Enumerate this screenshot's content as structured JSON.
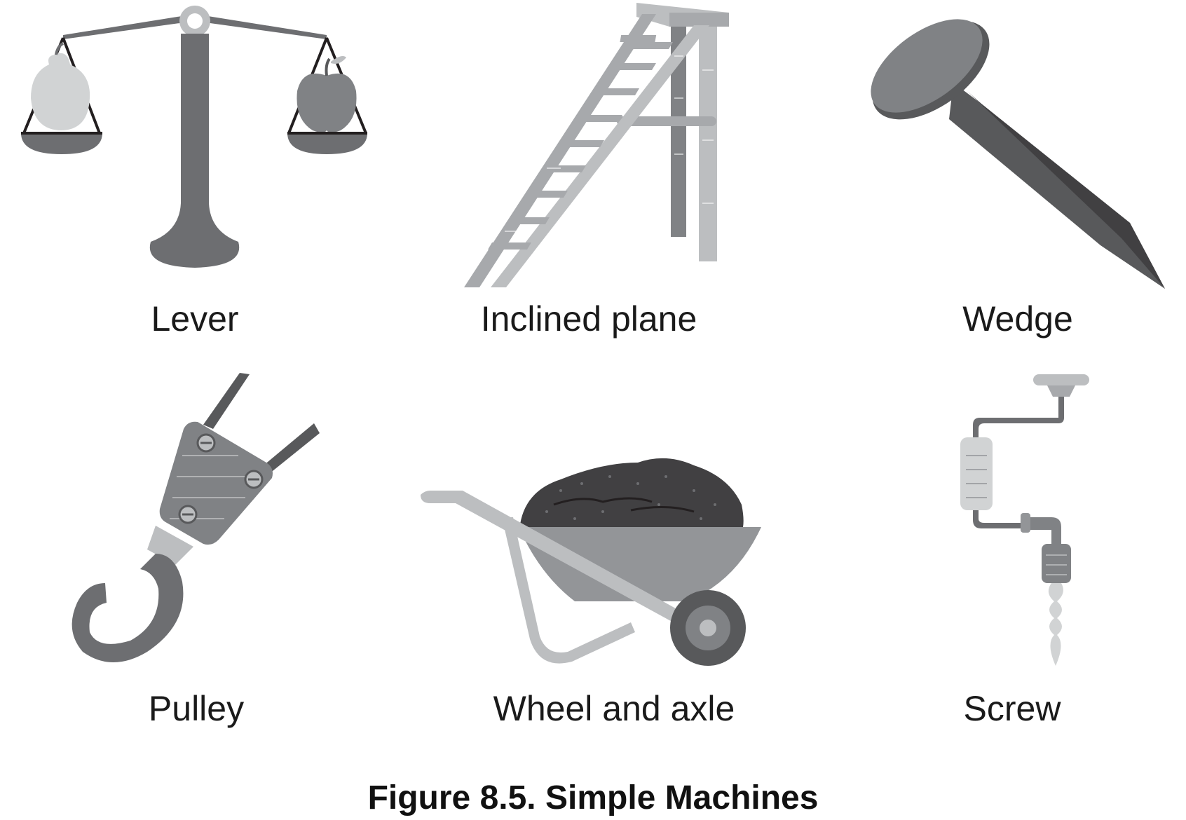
{
  "figure": {
    "caption": "Figure 8.5. Simple Machines",
    "machines": [
      {
        "label": "Lever",
        "icon": "balance-scale-icon"
      },
      {
        "label": "Inclined plane",
        "icon": "ladder-icon"
      },
      {
        "label": "Wedge",
        "icon": "nail-icon"
      },
      {
        "label": "Pulley",
        "icon": "pulley-hook-icon"
      },
      {
        "label": "Wheel and axle",
        "icon": "wheelbarrow-icon"
      },
      {
        "label": "Screw",
        "icon": "hand-drill-icon"
      }
    ]
  },
  "colors": {
    "dark": "#58595b",
    "mid": "#808285",
    "light": "#bcbec0",
    "pale": "#d1d3d4",
    "text": "#1a1a1a"
  }
}
